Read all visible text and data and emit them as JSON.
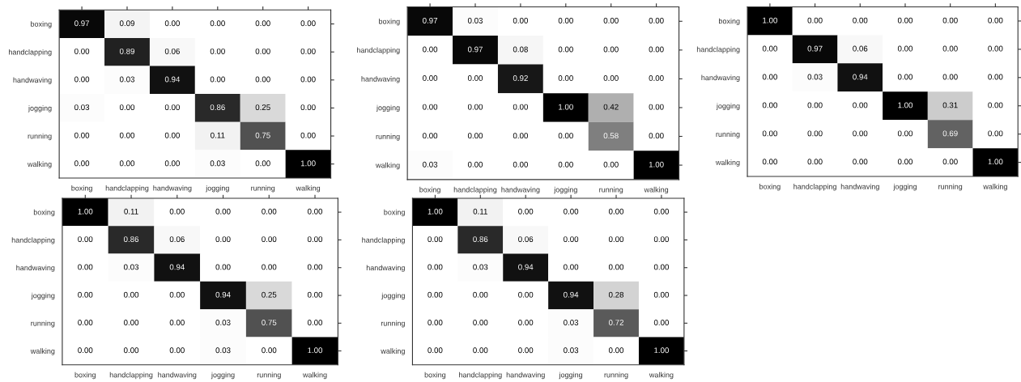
{
  "chart_data": [
    {
      "type": "heatmap",
      "categories": [
        "boxing",
        "handclapping",
        "handwaving",
        "jogging",
        "running",
        "walking"
      ],
      "y_categories": [
        "boxing",
        "handclapping",
        "handwaving",
        "jogging",
        "running",
        "walking"
      ],
      "cells": [
        [
          0.97,
          0.09,
          0.0,
          0.0,
          0.0,
          0.0
        ],
        [
          0.0,
          0.89,
          0.06,
          0.0,
          0.0,
          0.0
        ],
        [
          0.0,
          0.03,
          0.94,
          0.0,
          0.0,
          0.0
        ],
        [
          0.03,
          0.0,
          0.0,
          0.86,
          0.25,
          0.0
        ],
        [
          0.0,
          0.0,
          0.0,
          0.11,
          0.75,
          0.0
        ],
        [
          0.0,
          0.0,
          0.0,
          0.03,
          0.0,
          1.0
        ]
      ],
      "cell_labels": [
        [
          "0.97",
          "0.09",
          "0.00",
          "0.00",
          "0.00",
          "0.00"
        ],
        [
          "0.00",
          "0.89",
          "0.06",
          "0.00",
          "0.00",
          "0.00"
        ],
        [
          "0.00",
          "0.03",
          "0.94",
          "0.00",
          "0.00",
          "0.00"
        ],
        [
          "0.03",
          "0.00",
          "0.00",
          "0.86",
          "0.25",
          "0.00"
        ],
        [
          "0.00",
          "0.00",
          "0.00",
          "0.11",
          "0.75",
          "0.00"
        ],
        [
          "0.00",
          "0.00",
          "0.00",
          "0.03",
          "0.00",
          "1.00"
        ]
      ]
    },
    {
      "type": "heatmap",
      "categories": [
        "boxing",
        "handclapping",
        "handwaving",
        "jogging",
        "running",
        "walking"
      ],
      "y_categories": [
        "boxing",
        "handclapping",
        "handwaving",
        "jogging",
        "running",
        "walking"
      ],
      "cells": [
        [
          0.97,
          0.03,
          0.0,
          0.0,
          0.0,
          0.0
        ],
        [
          0.0,
          0.97,
          0.08,
          0.0,
          0.0,
          0.0
        ],
        [
          0.0,
          0.0,
          0.92,
          0.0,
          0.0,
          0.0
        ],
        [
          0.0,
          0.0,
          0.0,
          1.0,
          0.42,
          0.0
        ],
        [
          0.0,
          0.0,
          0.0,
          0.0,
          0.58,
          0.0
        ],
        [
          0.03,
          0.0,
          0.0,
          0.0,
          0.0,
          1.0
        ]
      ],
      "cell_labels": [
        [
          "0.97",
          "0.03",
          "0.00",
          "0.00",
          "0.00",
          "0.00"
        ],
        [
          "0.00",
          "0.97",
          "0.08",
          "0.00",
          "0.00",
          "0.00"
        ],
        [
          "0.00",
          "0.00",
          "0.92",
          "0.00",
          "0.00",
          "0.00"
        ],
        [
          "0.00",
          "0.00",
          "0.00",
          "1.00",
          "0.42",
          "0.00"
        ],
        [
          "0.00",
          "0.00",
          "0.00",
          "0.00",
          "0.58",
          "0.00"
        ],
        [
          "0.03",
          "0.00",
          "0.00",
          "0.00",
          "0.00",
          "1.00"
        ]
      ]
    },
    {
      "type": "heatmap",
      "categories": [
        "boxing",
        "handclapping",
        "handwaving",
        "jogging",
        "running",
        "walking"
      ],
      "y_categories": [
        "boxing",
        "handclapping",
        "handwaving",
        "jogging",
        "running",
        "walking"
      ],
      "cells": [
        [
          1.0,
          0.0,
          0.0,
          0.0,
          0.0,
          0.0
        ],
        [
          0.0,
          0.97,
          0.06,
          0.0,
          0.0,
          0.0
        ],
        [
          0.0,
          0.03,
          0.94,
          0.0,
          0.0,
          0.0
        ],
        [
          0.0,
          0.0,
          0.0,
          1.0,
          0.31,
          0.0
        ],
        [
          0.0,
          0.0,
          0.0,
          0.0,
          0.69,
          0.0
        ],
        [
          0.0,
          0.0,
          0.0,
          0.0,
          0.0,
          1.0
        ]
      ],
      "cell_labels": [
        [
          "1.00",
          "0.00",
          "0.00",
          "0.00",
          "0.00",
          "0.00"
        ],
        [
          "0.00",
          "0.97",
          "0.06",
          "0.00",
          "0.00",
          "0.00"
        ],
        [
          "0.00",
          "0.03",
          "0.94",
          "0.00",
          "0.00",
          "0.00"
        ],
        [
          "0.00",
          "0.00",
          "0.00",
          "1.00",
          "0.31",
          "0.00"
        ],
        [
          "0.00",
          "0.00",
          "0.00",
          "0.00",
          "0.69",
          "0.00"
        ],
        [
          "0.00",
          "0.00",
          "0.00",
          "0.00",
          "0.00",
          "1.00"
        ]
      ]
    },
    {
      "type": "heatmap",
      "categories": [
        "boxing",
        "handclapping",
        "handwaving",
        "jogging",
        "running",
        "walking"
      ],
      "y_categories": [
        "boxing",
        "handclapping",
        "handwaving",
        "jogging",
        "running",
        "walking"
      ],
      "cells": [
        [
          1.0,
          0.11,
          0.0,
          0.0,
          0.0,
          0.0
        ],
        [
          0.0,
          0.86,
          0.06,
          0.0,
          0.0,
          0.0
        ],
        [
          0.0,
          0.03,
          0.94,
          0.0,
          0.0,
          0.0
        ],
        [
          0.0,
          0.0,
          0.0,
          0.94,
          0.25,
          0.0
        ],
        [
          0.0,
          0.0,
          0.0,
          0.03,
          0.75,
          0.0
        ],
        [
          0.0,
          0.0,
          0.0,
          0.03,
          0.0,
          1.0
        ]
      ],
      "cell_labels": [
        [
          "1.00",
          "0.11",
          "0.00",
          "0.00",
          "0.00",
          "0.00"
        ],
        [
          "0.00",
          "0.86",
          "0.06",
          "0.00",
          "0.00",
          "0.00"
        ],
        [
          "0.00",
          "0.03",
          "0.94",
          "0.00",
          "0.00",
          "0.00"
        ],
        [
          "0.00",
          "0.00",
          "0.00",
          "0.94",
          "0.25",
          "0.00"
        ],
        [
          "0.00",
          "0.00",
          "0.00",
          "0.03",
          "0.75",
          "0.00"
        ],
        [
          "0.00",
          "0.00",
          "0.00",
          "0.03",
          "0.00",
          "1.00"
        ]
      ]
    },
    {
      "type": "heatmap",
      "categories": [
        "boxing",
        "handclapping",
        "handwaving",
        "jogging",
        "running",
        "walking"
      ],
      "y_categories": [
        "boxing",
        "handclapping",
        "handwaving",
        "jogging",
        "running",
        "walking"
      ],
      "cells": [
        [
          1.0,
          0.11,
          0.0,
          0.0,
          0.0,
          0.0
        ],
        [
          0.0,
          0.86,
          0.06,
          0.0,
          0.0,
          0.0
        ],
        [
          0.0,
          0.03,
          0.94,
          0.0,
          0.0,
          0.0
        ],
        [
          0.0,
          0.0,
          0.0,
          0.94,
          0.28,
          0.0
        ],
        [
          0.0,
          0.0,
          0.0,
          0.03,
          0.72,
          0.0
        ],
        [
          0.0,
          0.0,
          0.0,
          0.03,
          0.0,
          1.0
        ]
      ],
      "cell_labels": [
        [
          "1.00",
          "0.11",
          "0.00",
          "0.00",
          "0.00",
          "0.00"
        ],
        [
          "0.00",
          "0.86",
          "0.06",
          "0.00",
          "0.00",
          "0.00"
        ],
        [
          "0.00",
          "0.03",
          "0.94",
          "0.00",
          "0.00",
          "0.00"
        ],
        [
          "0.00",
          "0.00",
          "0.00",
          "0.94",
          "0.28",
          "0.00"
        ],
        [
          "0.00",
          "0.00",
          "0.00",
          "0.03",
          "0.72",
          "0.00"
        ],
        [
          "0.00",
          "0.00",
          "0.00",
          "0.03",
          "0.00",
          "1.00"
        ]
      ]
    }
  ]
}
